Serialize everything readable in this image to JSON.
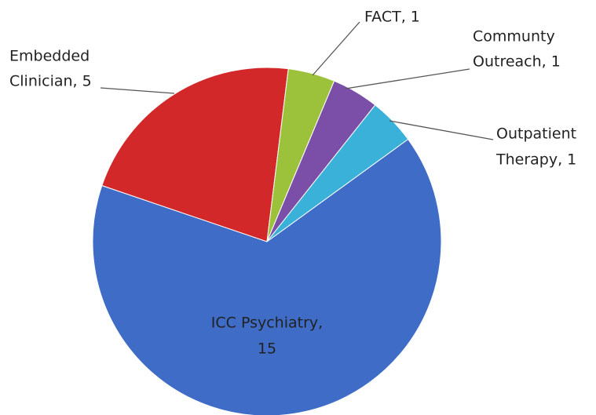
{
  "chart_data": {
    "type": "pie",
    "labels": [
      [
        "ICC Psychiatry,",
        "15"
      ],
      [
        "Embedded",
        "Clinician, 5"
      ],
      [
        "FACT, 1"
      ],
      [
        "Communty",
        "Outreach, 1"
      ],
      [
        "Outpatient",
        "Therapy, 1"
      ]
    ],
    "values": [
      15,
      5,
      1,
      1,
      1
    ],
    "colors": [
      "#3e6cc6",
      "#d3282a",
      "#9cc23c",
      "#7b4ea8",
      "#39b1d9"
    ]
  }
}
